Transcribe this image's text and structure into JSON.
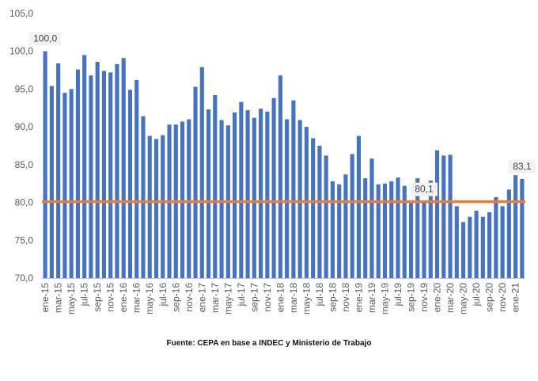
{
  "chart_data": {
    "type": "bar",
    "title": "",
    "xlabel": "",
    "ylabel": "",
    "ylim": [
      70,
      105
    ],
    "yticks": [
      "70,0",
      "75,0",
      "80,0",
      "85,0",
      "90,0",
      "95,0",
      "100,0",
      "105,0"
    ],
    "ytick_values": [
      70,
      75,
      80,
      85,
      90,
      95,
      100,
      105
    ],
    "categories": [
      "ene-15",
      "feb-15",
      "mar-15",
      "abr-15",
      "may-15",
      "jun-15",
      "jul-15",
      "ago-15",
      "sep-15",
      "oct-15",
      "nov-15",
      "dic-15",
      "ene-16",
      "feb-16",
      "mar-16",
      "abr-16",
      "may-16",
      "jun-16",
      "jul-16",
      "ago-16",
      "sep-16",
      "oct-16",
      "nov-16",
      "dic-16",
      "ene-17",
      "feb-17",
      "mar-17",
      "abr-17",
      "may-17",
      "jun-17",
      "jul-17",
      "ago-17",
      "sep-17",
      "oct-17",
      "nov-17",
      "dic-17",
      "ene-18",
      "feb-18",
      "mar-18",
      "abr-18",
      "may-18",
      "jun-18",
      "jul-18",
      "ago-18",
      "sep-18",
      "oct-18",
      "nov-18",
      "dic-18",
      "ene-19",
      "feb-19",
      "mar-19",
      "abr-19",
      "may-19",
      "jun-19",
      "jul-19",
      "ago-19",
      "sep-19",
      "oct-19",
      "nov-19",
      "dic-19",
      "ene-20",
      "feb-20",
      "mar-20",
      "abr-20",
      "may-20",
      "jun-20",
      "jul-20",
      "ago-20",
      "sep-20",
      "oct-20",
      "nov-20",
      "dic-20",
      "ene-21",
      "feb-21"
    ],
    "visible_xticks": [
      "ene-15",
      "mar-15",
      "may-15",
      "jul-15",
      "sep-15",
      "nov-15",
      "ene-16",
      "mar-16",
      "may-16",
      "jul-16",
      "sep-16",
      "nov-16",
      "ene-17",
      "mar-17",
      "may-17",
      "jul-17",
      "sep-17",
      "nov-17",
      "ene-18",
      "mar-18",
      "may-18",
      "jul-18",
      "sep-18",
      "nov-18",
      "ene-19",
      "mar-19",
      "may-19",
      "jul-19",
      "sep-19",
      "nov-19",
      "ene-20",
      "mar-20",
      "may-20",
      "jul-20",
      "sep-20",
      "nov-20",
      "ene-21"
    ],
    "values": [
      100.0,
      95.4,
      98.4,
      94.5,
      95.0,
      97.6,
      99.5,
      96.8,
      98.6,
      97.4,
      97.2,
      98.3,
      99.1,
      94.9,
      96.2,
      91.4,
      88.8,
      88.4,
      88.9,
      90.3,
      90.3,
      90.7,
      91.0,
      95.3,
      97.9,
      92.3,
      94.2,
      90.9,
      90.2,
      91.9,
      93.3,
      92.2,
      91.2,
      92.4,
      92.0,
      93.8,
      96.8,
      91.0,
      93.5,
      90.9,
      90.0,
      88.5,
      87.5,
      86.2,
      82.8,
      82.4,
      83.7,
      86.4,
      88.8,
      83.2,
      85.8,
      82.4,
      82.5,
      82.8,
      83.3,
      82.2,
      79.9,
      83.2,
      80.1,
      82.9,
      86.9,
      86.2,
      86.3,
      79.5,
      77.4,
      78.1,
      78.9,
      78.1,
      78.7,
      80.7,
      79.5,
      81.7,
      83.6,
      83.1
    ],
    "reference_line": {
      "value": 80.1,
      "color": "#ED7D31"
    },
    "data_labels": [
      {
        "index": 0,
        "text": "100,0"
      },
      {
        "index": 58,
        "text": "80,1"
      },
      {
        "index": 73,
        "text": "83,1"
      }
    ],
    "bar_color": "#4472C4",
    "grid": false
  },
  "caption": "Fuente: CEPA en base a INDEC y Ministerio de Trabajo"
}
